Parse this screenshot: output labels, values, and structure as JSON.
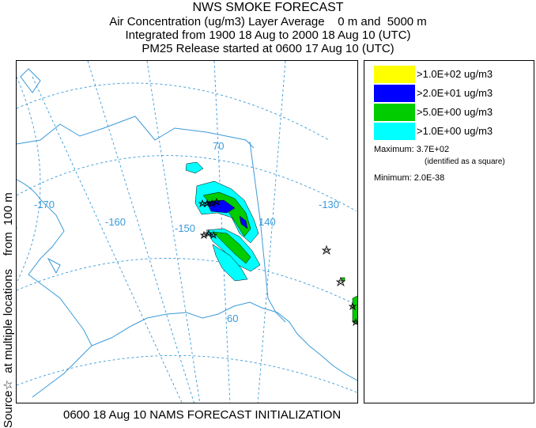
{
  "header": {
    "title": "NWS SMOKE FORECAST",
    "line2": "Air Concentration (ug/m3) Layer Average    0 m and  5000 m",
    "line3": "Integrated from 1900 18 Aug to 2000 18 Aug 10 (UTC)",
    "line4": "PM25 Release started at 0600 17 Aug 10 (UTC)"
  },
  "side_label": "Source☆  at multiple locations    from  100 m",
  "footer": "0600 18 Aug 10 NAMS FORECAST INITIALIZATION",
  "map": {
    "graticule_labels": {
      "lon_170": "-170",
      "lon_160": "-160",
      "lon_150": "-150",
      "lon_140": "140",
      "lon_130": "-130",
      "lat_70": "70",
      "lat_60": "60"
    },
    "colors": {
      "graticule": "#3a9ad9",
      "coastline": "#3a9ad9",
      "border": "#3a9ad9"
    }
  },
  "legend": {
    "items": [
      {
        "label": ">1.0E+02 ug/m3",
        "color": "#ffff00"
      },
      {
        "label": ">2.0E+01 ug/m3",
        "color": "#0000ff"
      },
      {
        "label": ">5.0E+00 ug/m3",
        "color": "#00cc00"
      },
      {
        "label": ">1.0E+00 ug/m3",
        "color": "#00ffff"
      }
    ],
    "maximum_label": "Maximum: 3.7E+02",
    "maximum_note": "(identified as a square)",
    "minimum_label": "Minimum: 2.0E-38"
  }
}
